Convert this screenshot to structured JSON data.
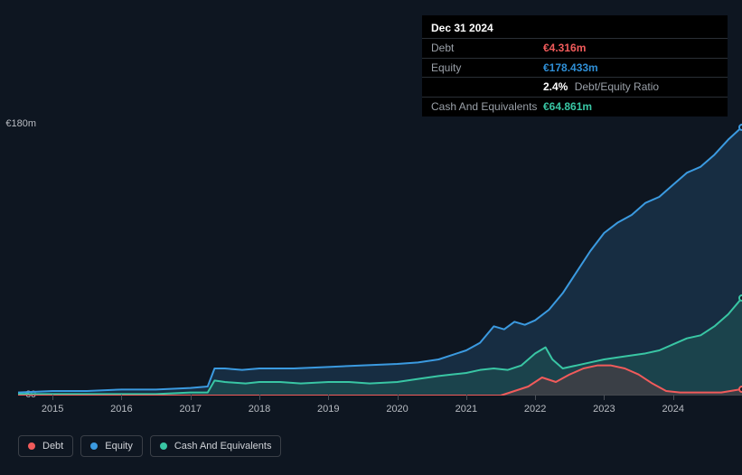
{
  "tooltip": {
    "title": "Dec 31 2024",
    "rows": [
      {
        "label": "Debt",
        "value": "€4.316m",
        "color": "#f15b5b"
      },
      {
        "label": "Equity",
        "value": "€178.433m",
        "color": "#2f8fd6"
      },
      {
        "label": "",
        "value": "2.4%",
        "extra": "Debt/Equity Ratio",
        "color": "#ffffff"
      },
      {
        "label": "Cash And Equivalents",
        "value": "€64.861m",
        "color": "#39c6a4"
      }
    ]
  },
  "chart": {
    "background": "#0e1621",
    "plot_bg_top": "rgba(30,60,90,0.0)",
    "plot_bg_bottom": "rgba(30,60,90,0.0)",
    "y_axis": {
      "min": 0,
      "max": 180,
      "labels": [
        {
          "v": 180,
          "text": "€180m"
        },
        {
          "v": 0,
          "text": "€0"
        }
      ],
      "grid_color": "#262c36"
    },
    "x_axis": {
      "min": 2014.5,
      "max": 2025.0,
      "ticks": [
        2015,
        2016,
        2017,
        2018,
        2019,
        2020,
        2021,
        2022,
        2023,
        2024
      ],
      "labels": [
        "2015",
        "2016",
        "2017",
        "2018",
        "2019",
        "2020",
        "2021",
        "2022",
        "2023",
        "2024"
      ],
      "axis_color": "#4a4f57"
    },
    "series": [
      {
        "name": "Equity",
        "color": "#3b9ae0",
        "fill": "rgba(40,90,130,0.35)",
        "line_width": 2,
        "data": [
          [
            2014.5,
            2
          ],
          [
            2015.0,
            3
          ],
          [
            2015.5,
            3
          ],
          [
            2016.0,
            4
          ],
          [
            2016.5,
            4
          ],
          [
            2017.0,
            5
          ],
          [
            2017.25,
            6
          ],
          [
            2017.35,
            18
          ],
          [
            2017.5,
            18
          ],
          [
            2017.75,
            17
          ],
          [
            2018.0,
            18
          ],
          [
            2018.5,
            18
          ],
          [
            2019.0,
            19
          ],
          [
            2019.5,
            20
          ],
          [
            2020.0,
            21
          ],
          [
            2020.3,
            22
          ],
          [
            2020.6,
            24
          ],
          [
            2021.0,
            30
          ],
          [
            2021.2,
            35
          ],
          [
            2021.4,
            46
          ],
          [
            2021.55,
            44
          ],
          [
            2021.7,
            49
          ],
          [
            2021.85,
            47
          ],
          [
            2022.0,
            50
          ],
          [
            2022.2,
            57
          ],
          [
            2022.4,
            68
          ],
          [
            2022.6,
            82
          ],
          [
            2022.8,
            96
          ],
          [
            2023.0,
            108
          ],
          [
            2023.2,
            115
          ],
          [
            2023.4,
            120
          ],
          [
            2023.6,
            128
          ],
          [
            2023.8,
            132
          ],
          [
            2024.0,
            140
          ],
          [
            2024.2,
            148
          ],
          [
            2024.4,
            152
          ],
          [
            2024.6,
            160
          ],
          [
            2024.8,
            170
          ],
          [
            2025.0,
            178.433
          ]
        ]
      },
      {
        "name": "Cash And Equivalents",
        "color": "#39c6a4",
        "fill": "rgba(35,110,95,0.35)",
        "line_width": 2,
        "data": [
          [
            2014.5,
            1
          ],
          [
            2015.0,
            1
          ],
          [
            2015.5,
            1
          ],
          [
            2016.0,
            1
          ],
          [
            2016.5,
            1
          ],
          [
            2017.0,
            2
          ],
          [
            2017.25,
            2
          ],
          [
            2017.35,
            10
          ],
          [
            2017.5,
            9
          ],
          [
            2017.8,
            8
          ],
          [
            2018.0,
            9
          ],
          [
            2018.3,
            9
          ],
          [
            2018.6,
            8
          ],
          [
            2019.0,
            9
          ],
          [
            2019.3,
            9
          ],
          [
            2019.6,
            8
          ],
          [
            2020.0,
            9
          ],
          [
            2020.3,
            11
          ],
          [
            2020.6,
            13
          ],
          [
            2020.8,
            14
          ],
          [
            2021.0,
            15
          ],
          [
            2021.2,
            17
          ],
          [
            2021.4,
            18
          ],
          [
            2021.6,
            17
          ],
          [
            2021.8,
            20
          ],
          [
            2022.0,
            28
          ],
          [
            2022.15,
            32
          ],
          [
            2022.25,
            24
          ],
          [
            2022.4,
            18
          ],
          [
            2022.6,
            20
          ],
          [
            2022.8,
            22
          ],
          [
            2023.0,
            24
          ],
          [
            2023.3,
            26
          ],
          [
            2023.6,
            28
          ],
          [
            2023.8,
            30
          ],
          [
            2024.0,
            34
          ],
          [
            2024.2,
            38
          ],
          [
            2024.4,
            40
          ],
          [
            2024.6,
            46
          ],
          [
            2024.8,
            54
          ],
          [
            2025.0,
            64.861
          ]
        ]
      },
      {
        "name": "Debt",
        "color": "#f15b5b",
        "fill": "rgba(150,50,50,0.25)",
        "line_width": 2,
        "data": [
          [
            2014.5,
            0
          ],
          [
            2015.0,
            0
          ],
          [
            2015.5,
            0
          ],
          [
            2016.0,
            0
          ],
          [
            2016.5,
            0
          ],
          [
            2017.0,
            0
          ],
          [
            2017.3,
            0
          ],
          [
            2017.5,
            0
          ],
          [
            2018.0,
            0
          ],
          [
            2018.5,
            0
          ],
          [
            2019.0,
            0
          ],
          [
            2019.5,
            0
          ],
          [
            2020.0,
            0
          ],
          [
            2020.5,
            0
          ],
          [
            2021.0,
            0
          ],
          [
            2021.3,
            0
          ],
          [
            2021.5,
            0
          ],
          [
            2021.7,
            3
          ],
          [
            2021.9,
            6
          ],
          [
            2022.1,
            12
          ],
          [
            2022.3,
            9
          ],
          [
            2022.5,
            14
          ],
          [
            2022.7,
            18
          ],
          [
            2022.9,
            20
          ],
          [
            2023.1,
            20
          ],
          [
            2023.3,
            18
          ],
          [
            2023.5,
            14
          ],
          [
            2023.7,
            8
          ],
          [
            2023.9,
            3
          ],
          [
            2024.1,
            2
          ],
          [
            2024.4,
            2
          ],
          [
            2024.7,
            2
          ],
          [
            2025.0,
            4.316
          ]
        ]
      }
    ],
    "legend": [
      {
        "label": "Debt",
        "color": "#f15b5b"
      },
      {
        "label": "Equity",
        "color": "#3b9ae0"
      },
      {
        "label": "Cash And Equivalents",
        "color": "#39c6a4"
      }
    ]
  }
}
